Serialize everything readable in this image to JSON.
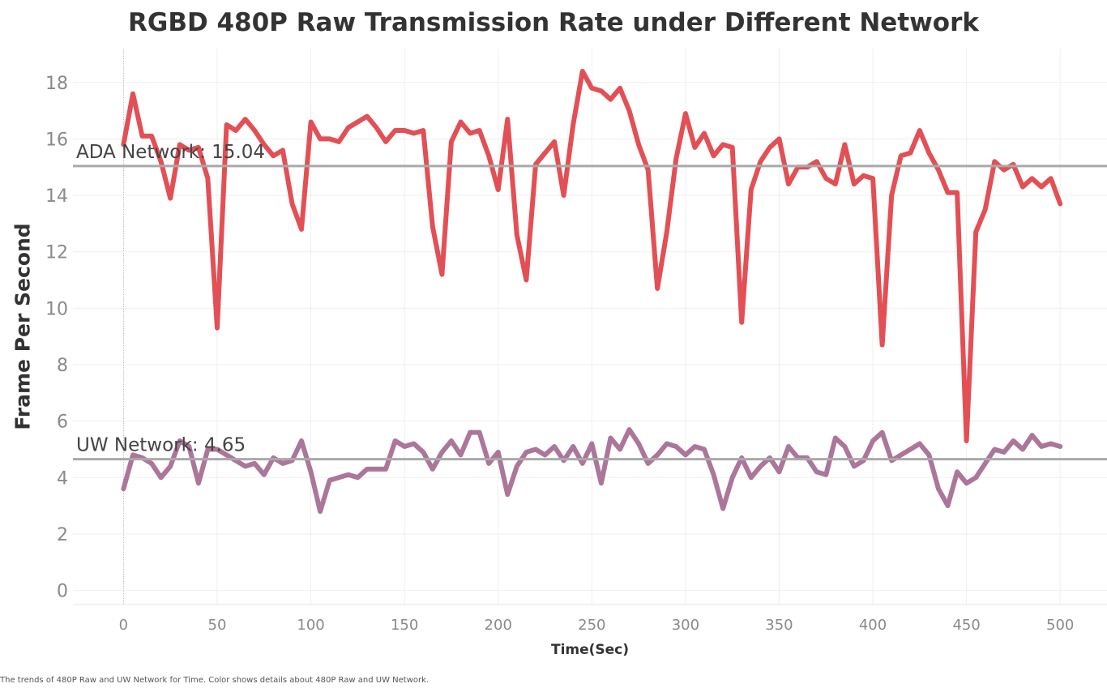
{
  "chart_data": {
    "type": "line",
    "title": "RGBD 480P Raw Transmission Rate under Different Network",
    "xlabel": "Time(Sec)",
    "ylabel": "Frame Per Second",
    "xlim": [
      -27,
      525
    ],
    "ylim": [
      -0.5,
      19.2
    ],
    "x_ticks": [
      0,
      50,
      100,
      150,
      200,
      250,
      300,
      350,
      400,
      450,
      500
    ],
    "y_ticks": [
      0,
      2,
      4,
      6,
      8,
      10,
      12,
      14,
      16,
      18
    ],
    "grid": true,
    "x": [
      0,
      5,
      10,
      15,
      20,
      25,
      30,
      35,
      40,
      45,
      50,
      55,
      60,
      65,
      70,
      75,
      80,
      85,
      90,
      95,
      100,
      105,
      110,
      115,
      120,
      125,
      130,
      135,
      140,
      145,
      150,
      155,
      160,
      165,
      170,
      175,
      180,
      185,
      190,
      195,
      200,
      205,
      210,
      215,
      220,
      225,
      230,
      235,
      240,
      245,
      250,
      255,
      260,
      265,
      270,
      275,
      280,
      285,
      290,
      295,
      300,
      305,
      310,
      315,
      320,
      325,
      330,
      335,
      340,
      345,
      350,
      355,
      360,
      365,
      370,
      375,
      380,
      385,
      390,
      395,
      400,
      405,
      410,
      415,
      420,
      425,
      430,
      435,
      440,
      445,
      450,
      455,
      460,
      465,
      470,
      475,
      480,
      485,
      490,
      495,
      500
    ],
    "series": [
      {
        "color": "#e0474c",
        "values": [
          15.8,
          17.6,
          16.1,
          16.1,
          15.2,
          13.9,
          15.8,
          15.6,
          15.7,
          14.6,
          9.3,
          16.5,
          16.3,
          16.7,
          16.3,
          15.8,
          15.4,
          15.6,
          13.7,
          12.8,
          16.6,
          16.0,
          16.0,
          15.9,
          16.4,
          16.6,
          16.8,
          16.4,
          15.9,
          16.3,
          16.3,
          16.2,
          16.3,
          12.9,
          11.2,
          15.9,
          16.6,
          16.2,
          16.3,
          15.4,
          14.2,
          16.7,
          12.6,
          11.0,
          15.1,
          15.5,
          15.9,
          14.0,
          16.5,
          18.4,
          17.8,
          17.7,
          17.4,
          17.8,
          17.0,
          15.8,
          14.9,
          10.7,
          12.7,
          15.3,
          16.9,
          15.7,
          16.2,
          15.4,
          15.8,
          15.7,
          9.5,
          14.2,
          15.2,
          15.7,
          16.0,
          14.4,
          15.0,
          15.0,
          15.2,
          14.6,
          14.4,
          15.8,
          14.4,
          14.7,
          14.6,
          8.7,
          14.0,
          15.4,
          15.5,
          16.3,
          15.5,
          14.9,
          14.1,
          14.1,
          5.3,
          12.7,
          13.5,
          15.2,
          14.9,
          15.1,
          14.3,
          14.6,
          14.3,
          14.6,
          13.7
        ]
      },
      {
        "color": "#a86f95",
        "values": [
          3.6,
          4.8,
          4.7,
          4.5,
          4.0,
          4.4,
          5.3,
          5.1,
          3.8,
          5.0,
          5.0,
          4.8,
          4.6,
          4.4,
          4.5,
          4.1,
          4.7,
          4.5,
          4.6,
          5.3,
          4.2,
          2.8,
          3.9,
          4.0,
          4.1,
          4.0,
          4.3,
          4.3,
          4.3,
          5.3,
          5.1,
          5.2,
          4.9,
          4.3,
          4.9,
          5.3,
          4.8,
          5.6,
          5.6,
          4.5,
          4.9,
          3.4,
          4.4,
          4.9,
          5.0,
          4.8,
          5.1,
          4.6,
          5.1,
          4.5,
          5.2,
          3.8,
          5.4,
          5.0,
          5.7,
          5.2,
          4.5,
          4.8,
          5.2,
          5.1,
          4.8,
          5.1,
          5.0,
          4.1,
          2.9,
          4.0,
          4.7,
          4.0,
          4.4,
          4.7,
          4.2,
          5.1,
          4.7,
          4.7,
          4.2,
          4.1,
          5.4,
          5.1,
          4.4,
          4.6,
          5.3,
          5.6,
          4.6,
          4.8,
          5.0,
          5.2,
          4.8,
          3.6,
          3.0,
          4.2,
          3.8,
          4.0,
          4.5,
          5.0,
          4.9,
          5.3,
          5.0,
          5.5,
          5.1,
          5.2,
          5.1
        ]
      }
    ],
    "reference_lines": [
      {
        "label": "ADA Network: 15.04",
        "value": 15.04
      },
      {
        "label": "UW Network: 4.65",
        "value": 4.65
      }
    ]
  },
  "footer": "The trends of 480P Raw and UW Network for Time.  Color shows details about 480P Raw and UW Network."
}
